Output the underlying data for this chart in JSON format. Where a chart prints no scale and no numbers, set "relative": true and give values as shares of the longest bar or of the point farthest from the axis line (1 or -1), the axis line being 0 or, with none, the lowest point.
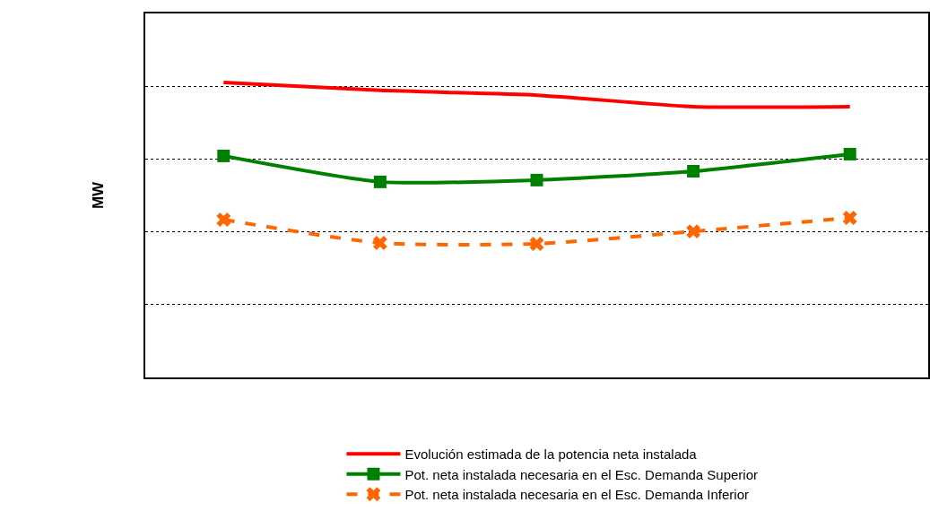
{
  "chart_data": {
    "type": "line",
    "ylabel": "MW",
    "relative": true,
    "categories": [
      null,
      null,
      null,
      null,
      null
    ],
    "series": [
      {
        "name": "Evolución estimada de la potencia neta instalada",
        "color": "#ff0000",
        "marker": "none",
        "line_style": "solid",
        "values": [
          1,
          0.973,
          0.957,
          0.918,
          0.918
        ]
      },
      {
        "name": "Pot. neta instalada necesaria en el Esc. Demanda Superior",
        "color": "#008000",
        "marker": "square",
        "line_style": "solid",
        "values": [
          0.751,
          0.663,
          0.669,
          0.699,
          0.757
        ]
      },
      {
        "name": "Pot. neta instalada necesaria en el Esc. Demanda Inferior",
        "color": "#ff6600",
        "marker": "cross",
        "line_style": "dashed",
        "values": [
          0.535,
          0.456,
          0.453,
          0.495,
          0.541
        ]
      }
    ],
    "grid": "y",
    "legend": "bottom"
  }
}
